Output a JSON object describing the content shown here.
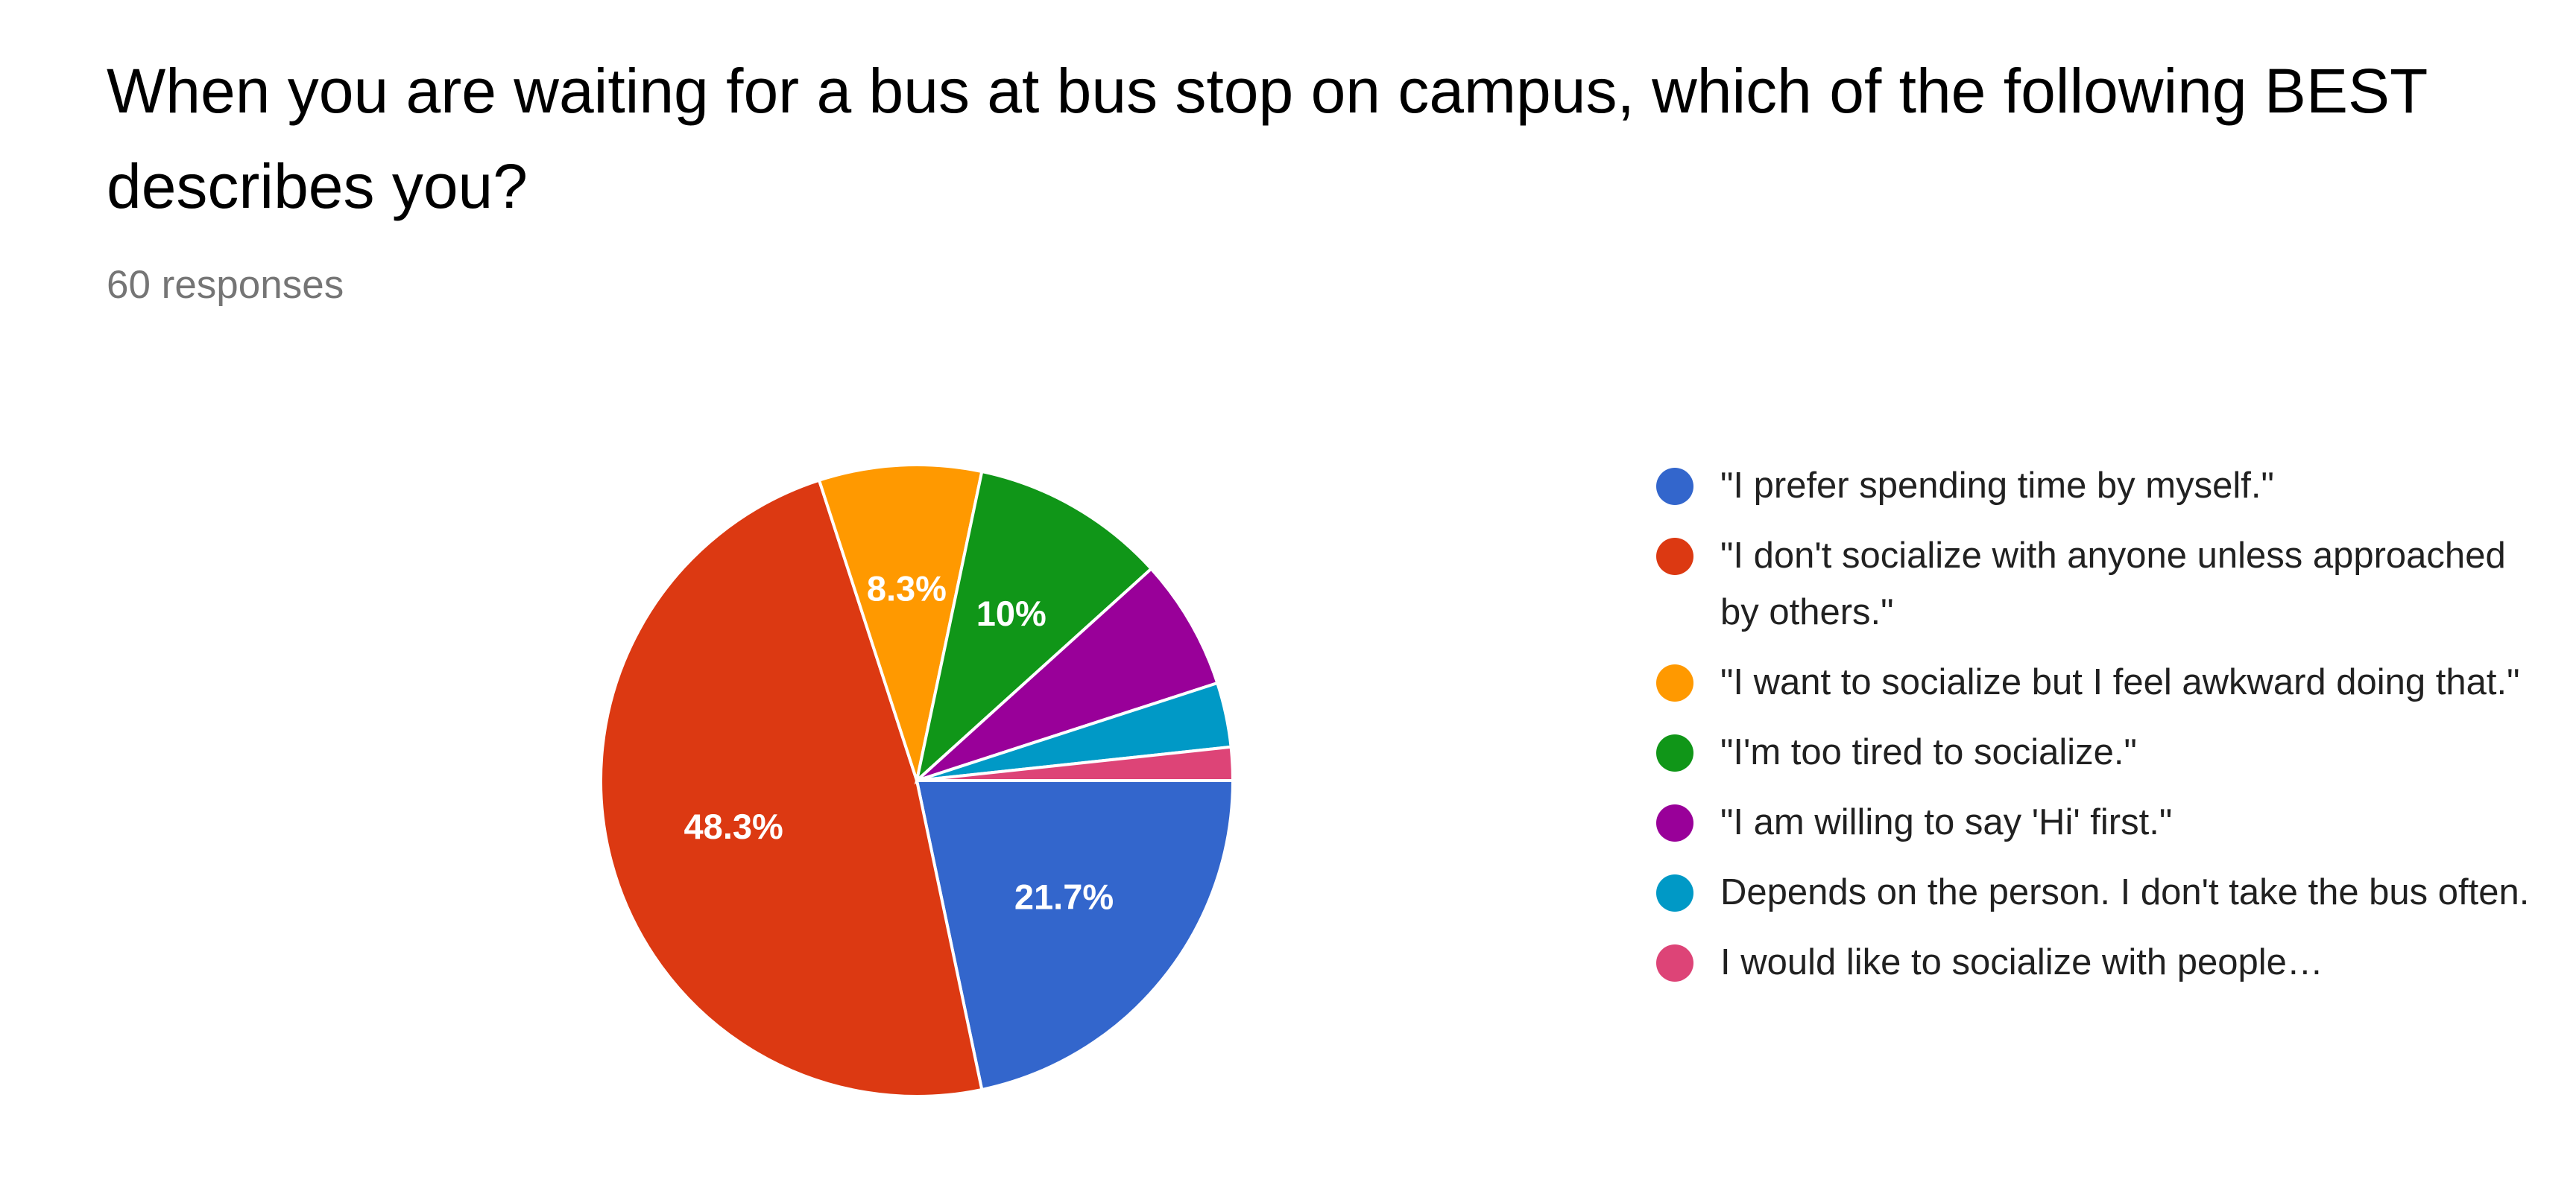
{
  "question": {
    "title": "When you are waiting for a bus at bus stop on campus, which of the following BEST describes you?",
    "response_count": "60 responses"
  },
  "chart_data": {
    "type": "pie",
    "title": "",
    "series": [
      {
        "slices": [
          {
            "label": "\"I prefer spending time by myself.\"",
            "value": 21.7,
            "display": "21.7%",
            "color": "#3366cc"
          },
          {
            "label": "\"I don't socialize with anyone unless approached by others.\"",
            "value": 48.3,
            "display": "48.3%",
            "color": "#dc3912"
          },
          {
            "label": "\"I want to socialize but I feel awkward doing that.\"",
            "value": 8.3,
            "display": "8.3%",
            "color": "#ff9900"
          },
          {
            "label": "\"I'm too tired to socialize.\"",
            "value": 10,
            "display": "10%",
            "color": "#109618"
          },
          {
            "label": "\"I am willing to say 'Hi' first.\"",
            "value": 6.7,
            "display": "",
            "color": "#990099"
          },
          {
            "label": "Depends on the person. I don't take the bus often.",
            "value": 3.3,
            "display": "",
            "color": "#0099c6"
          },
          {
            "label": "I would like to socialize with people…",
            "value": 1.7,
            "display": "",
            "color": "#dd4477"
          }
        ]
      }
    ],
    "legend_position": "right"
  }
}
